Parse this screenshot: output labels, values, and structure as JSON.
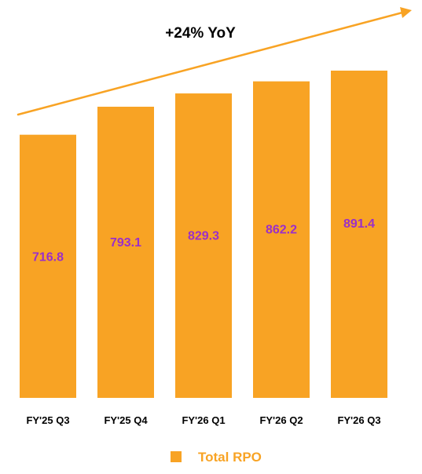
{
  "chart_data": {
    "type": "bar",
    "categories": [
      "FY'25 Q3",
      "FY'25 Q4",
      "FY'26 Q1",
      "FY'26 Q2",
      "FY'26 Q3"
    ],
    "series": [
      {
        "name": "Total RPO",
        "values": [
          716.8,
          793.1,
          829.3,
          862.2,
          891.4
        ]
      }
    ],
    "data_labels": [
      "716.8",
      "793.1",
      "829.3",
      "862.2",
      "891.4"
    ],
    "annotation": "+24% YoY",
    "title": "",
    "xlabel": "",
    "ylabel": "",
    "ylim": [
      0,
      891.4
    ],
    "grid": false,
    "legend": "bottom",
    "colors": {
      "bar": "#F8A324",
      "value_label": "#9B2FC8",
      "legend_text": "#F8A324",
      "arrow": "#F8A324"
    }
  }
}
